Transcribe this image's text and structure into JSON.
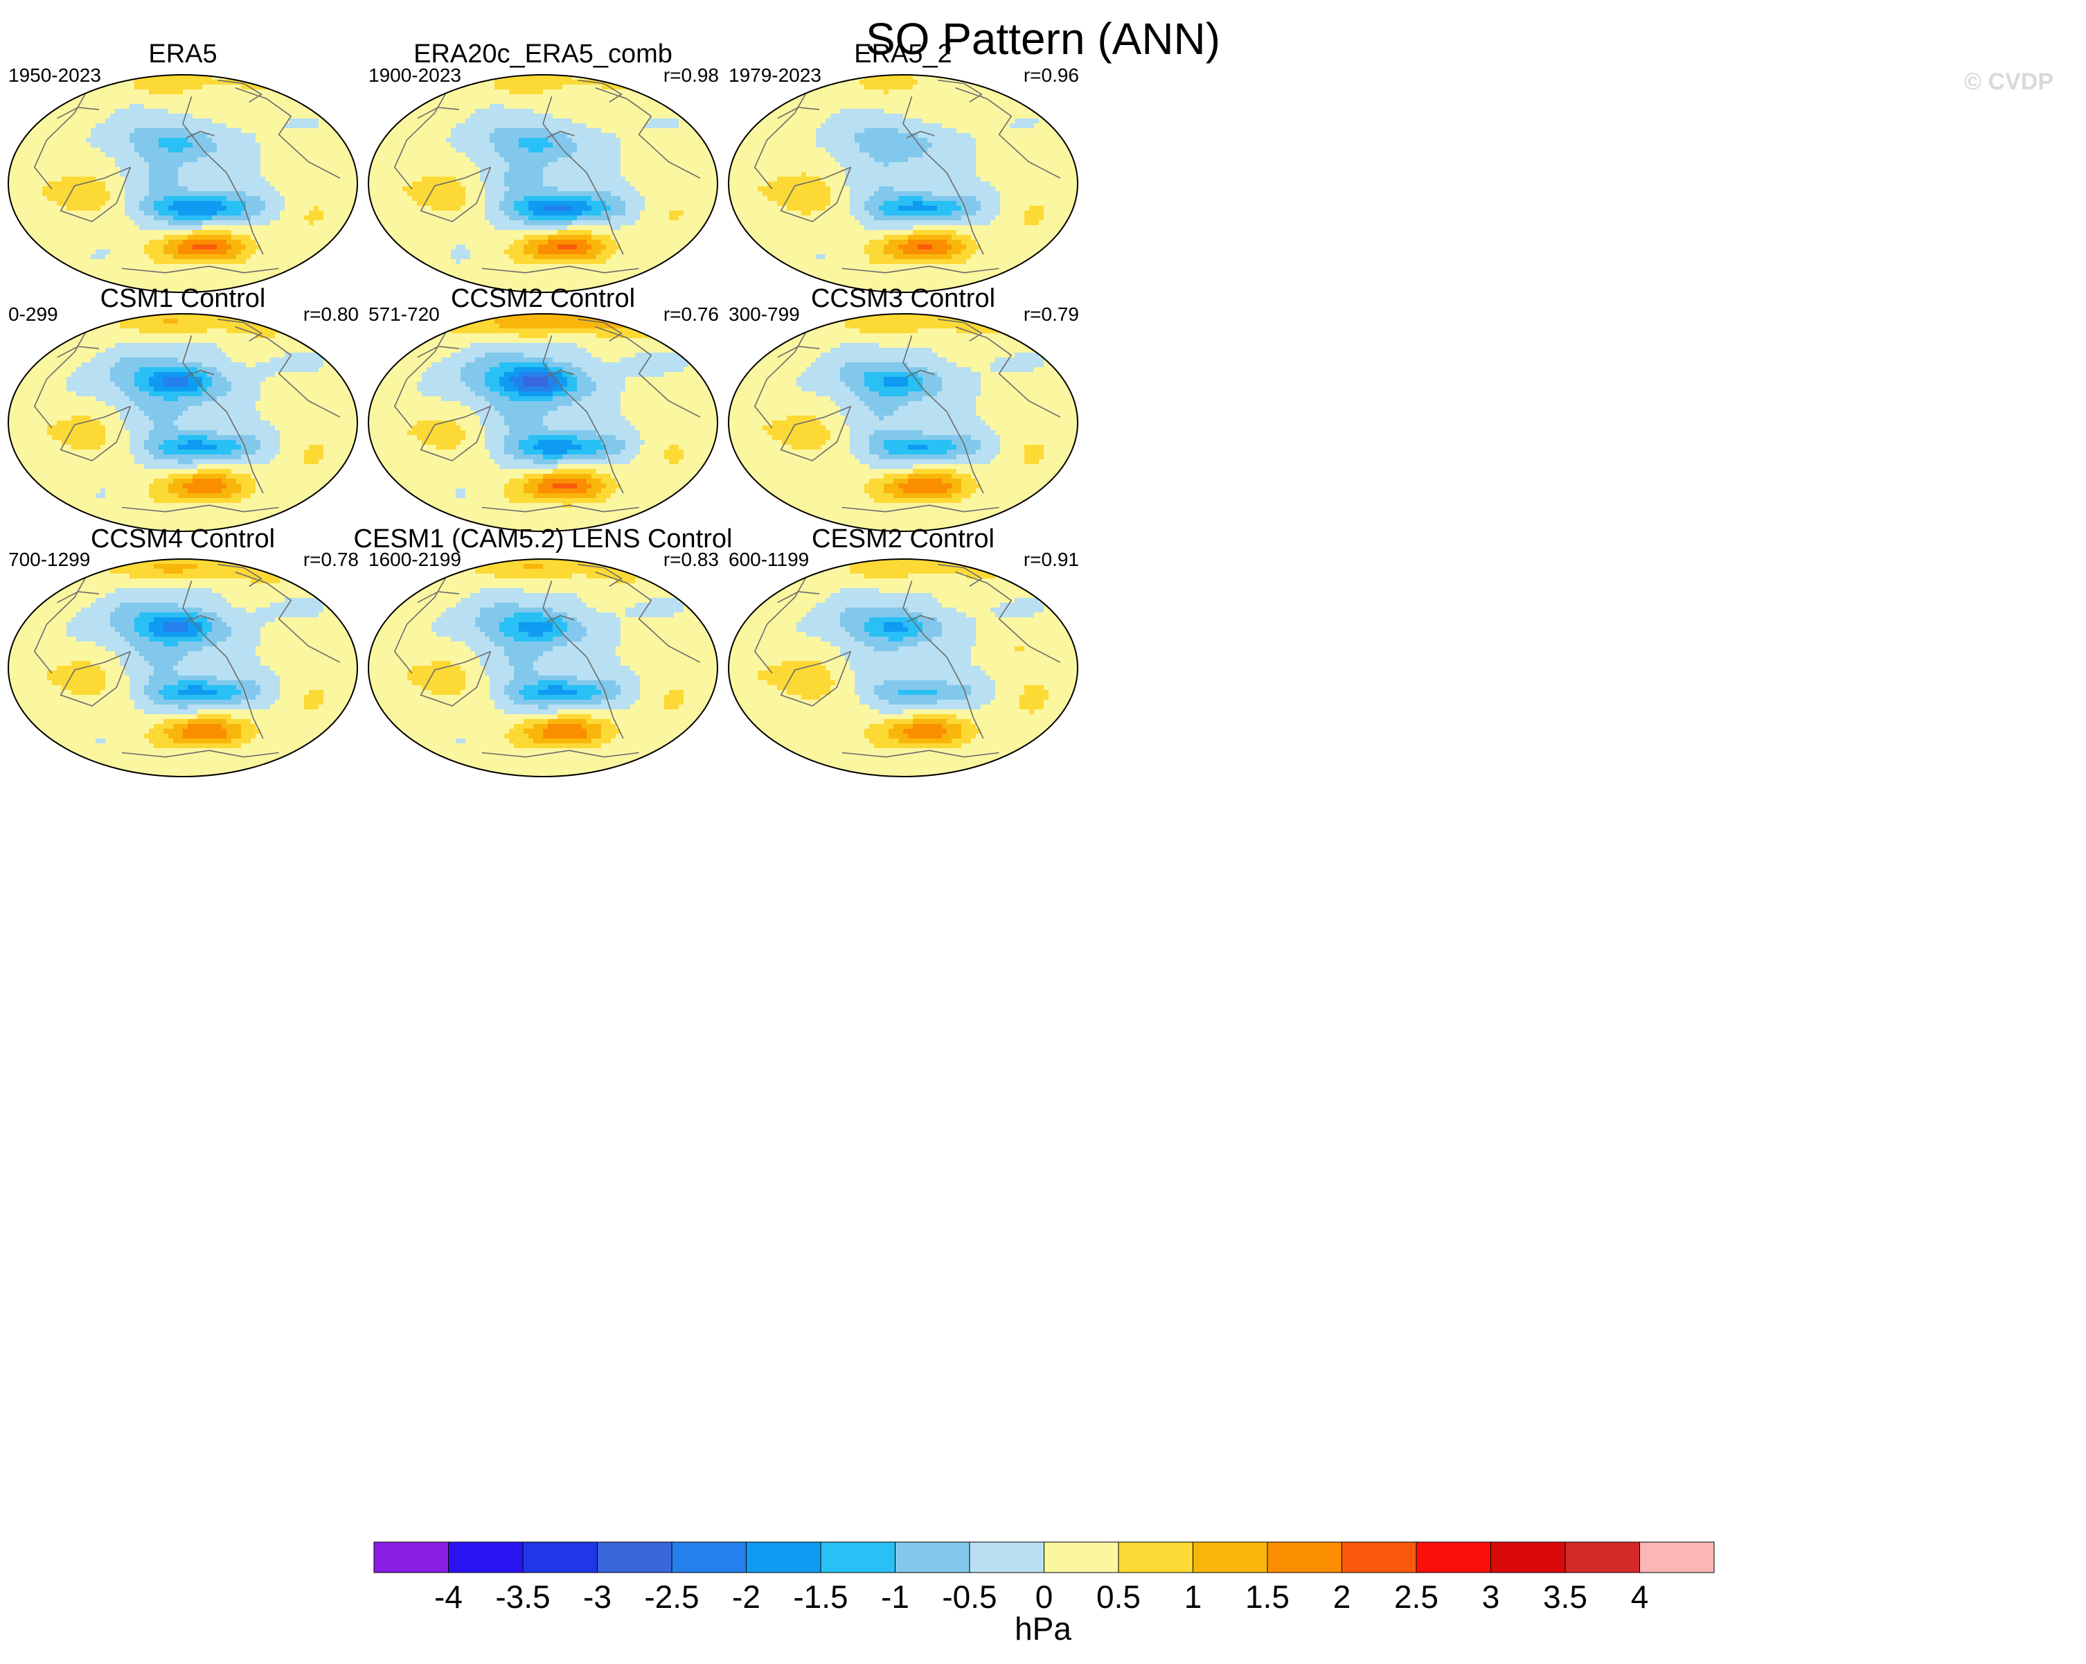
{
  "title": "SO Pattern (ANN)",
  "watermark": "© CVDP",
  "chart_data": {
    "type": "contour-map-panels",
    "projection": "Robinson (Pacific-centered, global)",
    "title": "SO Pattern (ANN)",
    "panels": [
      {
        "name": "ERA5",
        "years": "1950-2023",
        "r": "",
        "pattern": {
          "nPacLow": -1.0,
          "sPacLow": -1.6,
          "sHigh": 2.1,
          "ausHigh": 1.0,
          "arcticHigh": 0.4
        }
      },
      {
        "name": "ERA20c_ERA5_comb",
        "years": "1900-2023",
        "r": "r=0.98",
        "pattern": {
          "nPacLow": -1.0,
          "sPacLow": -1.7,
          "sHigh": 2.1,
          "ausHigh": 1.0,
          "arcticHigh": 0.4
        }
      },
      {
        "name": "ERA5_2",
        "years": "1979-2023",
        "r": "r=0.96",
        "pattern": {
          "nPacLow": -0.9,
          "sPacLow": -1.4,
          "sHigh": 2.0,
          "ausHigh": 1.0,
          "arcticHigh": 0.3
        }
      },
      {
        "name": "CSM1 Control",
        "years": "0-299",
        "r": "r=0.80",
        "pattern": {
          "nPacLow": -1.8,
          "sPacLow": -1.4,
          "sHigh": 1.8,
          "ausHigh": 0.9,
          "arcticHigh": 0.7
        }
      },
      {
        "name": "CCSM2 Control",
        "years": "571-720",
        "r": "r=0.76",
        "pattern": {
          "nPacLow": -2.2,
          "sPacLow": -1.5,
          "sHigh": 2.1,
          "ausHigh": 0.9,
          "arcticHigh": 1.2
        }
      },
      {
        "name": "CCSM3 Control",
        "years": "300-799",
        "r": "r=0.79",
        "pattern": {
          "nPacLow": -1.4,
          "sPacLow": -1.3,
          "sHigh": 1.9,
          "ausHigh": 0.9,
          "arcticHigh": 0.6
        }
      },
      {
        "name": "CCSM4 Control",
        "years": "700-1299",
        "r": "r=0.78",
        "pattern": {
          "nPacLow": -1.8,
          "sPacLow": -1.4,
          "sHigh": 1.9,
          "ausHigh": 0.9,
          "arcticHigh": 0.8
        }
      },
      {
        "name": "CESM1 (CAM5.2) LENS Control",
        "years": "1600-2199",
        "r": "r=0.83",
        "pattern": {
          "nPacLow": -1.5,
          "sPacLow": -1.4,
          "sHigh": 1.9,
          "ausHigh": 0.9,
          "arcticHigh": 0.7
        }
      },
      {
        "name": "CESM2 Control",
        "years": "600-1199",
        "r": "r=0.91",
        "pattern": {
          "nPacLow": -1.4,
          "sPacLow": -1.0,
          "sHigh": 1.7,
          "ausHigh": 0.9,
          "arcticHigh": 0.5
        }
      }
    ],
    "colorbar": {
      "label": "hPa",
      "levels": [
        -4,
        -3.5,
        -3,
        -2.5,
        -2,
        -1.5,
        -1,
        -0.5,
        0,
        0.5,
        1,
        1.5,
        2,
        2.5,
        3,
        3.5,
        4
      ],
      "tick_labels": [
        "-4",
        "-3.5",
        "-3",
        "-2.5",
        "-2",
        "-1.5",
        "-1",
        "-0.5",
        "0",
        "0.5",
        "1",
        "1.5",
        "2",
        "2.5",
        "3",
        "3.5",
        "4"
      ],
      "colors": [
        "#8a1fe6",
        "#2a14f2",
        "#1f37e6",
        "#3a66dc",
        "#2480ec",
        "#0f9bf2",
        "#28c0f5",
        "#82c8ec",
        "#b8e0f2",
        "#fbf6a0",
        "#fdd935",
        "#f9b60a",
        "#fb8d00",
        "#fb5a0c",
        "#fa1008",
        "#da0a0a",
        "#d42a2a",
        "#fbb6b6"
      ]
    }
  }
}
